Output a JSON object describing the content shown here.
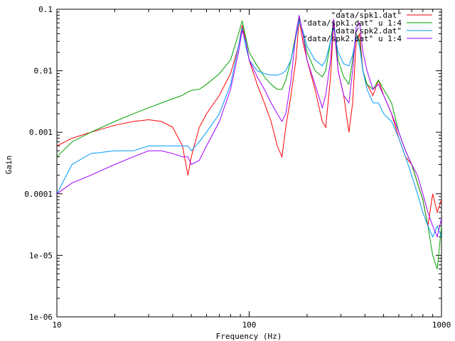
{
  "chart_data": {
    "type": "line",
    "title": "",
    "xlabel": "Frequency (Hz)",
    "ylabel": "Gain",
    "xscale": "log",
    "yscale": "log",
    "xlim": [
      10,
      1000
    ],
    "ylim": [
      1e-06,
      0.1
    ],
    "grid": false,
    "legend_position": "top-right",
    "x_ticks": [
      {
        "value": 10,
        "label": "10"
      },
      {
        "value": 100,
        "label": "100"
      },
      {
        "value": 1000,
        "label": "1000"
      }
    ],
    "y_ticks": [
      {
        "value": 0.1,
        "label": "0.1"
      },
      {
        "value": 0.01,
        "label": "0.01"
      },
      {
        "value": 0.001,
        "label": "0.001"
      },
      {
        "value": 0.0001,
        "label": "0.0001"
      },
      {
        "value": 1e-05,
        "label": "1e-05"
      },
      {
        "value": 1e-06,
        "label": "1e-06"
      }
    ],
    "x": [
      10,
      12,
      15,
      20,
      25,
      30,
      35,
      40,
      45,
      48,
      50,
      55,
      60,
      70,
      80,
      88,
      92,
      96,
      100,
      110,
      120,
      130,
      140,
      148,
      155,
      165,
      175,
      182,
      190,
      200,
      220,
      240,
      250,
      265,
      275,
      290,
      310,
      330,
      345,
      360,
      375,
      390,
      410,
      440,
      470,
      500,
      550,
      600,
      650,
      700,
      750,
      800,
      850,
      900,
      950,
      1000
    ],
    "series": [
      {
        "name": "\"data/spk1.dat\"",
        "color": "#ff0000",
        "values": [
          0.0006,
          0.0008,
          0.001,
          0.0013,
          0.0015,
          0.0016,
          0.0015,
          0.0012,
          0.0006,
          0.0002,
          0.0004,
          0.0012,
          0.002,
          0.004,
          0.009,
          0.025,
          0.055,
          0.03,
          0.015,
          0.006,
          0.003,
          0.0015,
          0.0006,
          0.0004,
          0.0012,
          0.004,
          0.015,
          0.07,
          0.03,
          0.015,
          0.005,
          0.0015,
          0.0012,
          0.008,
          0.06,
          0.01,
          0.004,
          0.001,
          0.003,
          0.03,
          0.04,
          0.01,
          0.006,
          0.004,
          0.007,
          0.004,
          0.002,
          0.0008,
          0.0004,
          0.0003,
          0.00015,
          8e-05,
          3e-05,
          0.0001,
          5e-05,
          8e-05
        ]
      },
      {
        "name": "\"data/spk1.dat\" u 1:4",
        "color": "#00a000",
        "values": [
          0.0004,
          0.0007,
          0.001,
          0.0015,
          0.002,
          0.0025,
          0.003,
          0.0035,
          0.004,
          0.0045,
          0.0048,
          0.005,
          0.006,
          0.009,
          0.015,
          0.04,
          0.065,
          0.035,
          0.02,
          0.012,
          0.008,
          0.006,
          0.005,
          0.005,
          0.007,
          0.015,
          0.04,
          0.075,
          0.04,
          0.02,
          0.01,
          0.008,
          0.01,
          0.03,
          0.065,
          0.015,
          0.008,
          0.006,
          0.015,
          0.04,
          0.03,
          0.01,
          0.006,
          0.005,
          0.007,
          0.005,
          0.003,
          0.001,
          0.0005,
          0.0003,
          0.00015,
          8e-05,
          3e-05,
          1e-05,
          6e-06,
          3e-05
        ]
      },
      {
        "name": "\"data/spk2.dat\"",
        "color": "#0099ff",
        "values": [
          0.0001,
          0.0003,
          0.00045,
          0.0005,
          0.0005,
          0.0006,
          0.0006,
          0.0006,
          0.0006,
          0.0006,
          0.0005,
          0.0007,
          0.001,
          0.002,
          0.006,
          0.025,
          0.05,
          0.025,
          0.015,
          0.01,
          0.009,
          0.0085,
          0.0085,
          0.009,
          0.01,
          0.015,
          0.035,
          0.065,
          0.045,
          0.025,
          0.015,
          0.012,
          0.015,
          0.03,
          0.05,
          0.02,
          0.013,
          0.012,
          0.018,
          0.035,
          0.025,
          0.01,
          0.005,
          0.003,
          0.003,
          0.002,
          0.0015,
          0.0008,
          0.0004,
          0.0002,
          0.0001,
          5e-05,
          3e-05,
          2e-05,
          3e-05,
          2e-05
        ]
      },
      {
        "name": "\"data/spk2.dat\" u 1:4",
        "color": "#a000ff",
        "values": [
          0.0001,
          0.00015,
          0.0002,
          0.0003,
          0.0004,
          0.0005,
          0.0005,
          0.00045,
          0.0004,
          0.0004,
          0.0003,
          0.00035,
          0.0006,
          0.0015,
          0.005,
          0.02,
          0.045,
          0.03,
          0.015,
          0.008,
          0.005,
          0.003,
          0.002,
          0.0015,
          0.002,
          0.007,
          0.04,
          0.08,
          0.04,
          0.015,
          0.006,
          0.0025,
          0.004,
          0.015,
          0.07,
          0.01,
          0.004,
          0.003,
          0.01,
          0.05,
          0.06,
          0.02,
          0.01,
          0.005,
          0.006,
          0.004,
          0.002,
          0.001,
          0.0005,
          0.0003,
          0.0002,
          0.0001,
          5e-05,
          3e-05,
          2e-05,
          4e-05
        ]
      }
    ]
  }
}
